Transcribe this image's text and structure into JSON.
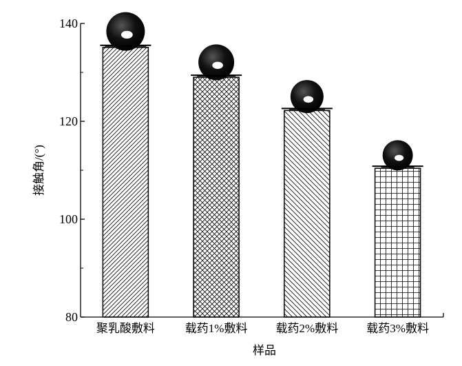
{
  "chart_data": {
    "type": "bar",
    "title": "",
    "xlabel": "样品",
    "ylabel": "接触角/(°)",
    "categories": [
      "聚乳酸敷料",
      "载药1%敷料",
      "载药2%敷料",
      "载药3%敷料"
    ],
    "values": [
      135.1,
      129.0,
      122.2,
      110.4
    ],
    "patterns": [
      "diagonal-forward",
      "crosshatch",
      "diagonal-back",
      "grid"
    ],
    "ylim": [
      80,
      140
    ],
    "yticks": [
      80,
      100,
      120,
      140
    ],
    "grid": false,
    "annotations": "water droplet images above each bar"
  }
}
